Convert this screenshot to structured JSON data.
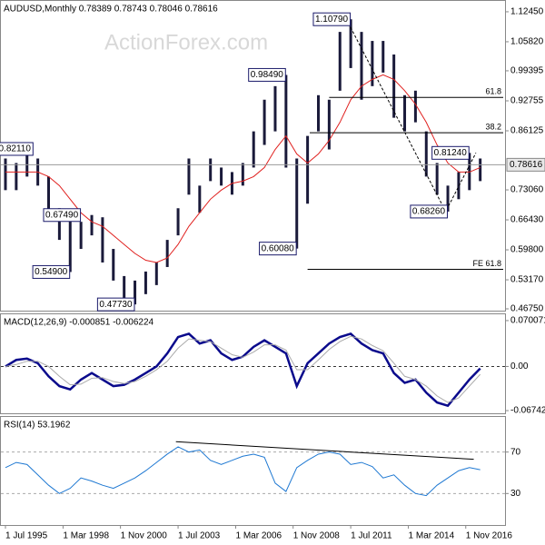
{
  "chart_data": [
    {
      "type": "range-bar",
      "title": "AUDUSD,Monthly  0.78389 0.78743 0.78046 0.78616",
      "watermark": "ActionForex.com",
      "color": "#1a1a3a",
      "ma_color": "#e0201e",
      "x": [
        1995.5,
        1996,
        1996.5,
        1997,
        1997.5,
        1998,
        1998.5,
        1999,
        1999.5,
        2000,
        2000.5,
        2001,
        2001.5,
        2002,
        2002.5,
        2003,
        2003.5,
        2004,
        2004.5,
        2005,
        2005.5,
        2006,
        2006.5,
        2007,
        2007.5,
        2008,
        2008.5,
        2009,
        2009.5,
        2010,
        2010.5,
        2011,
        2011.5,
        2012,
        2012.5,
        2013,
        2013.5,
        2014,
        2014.5,
        2015,
        2015.5,
        2016,
        2016.5,
        2017,
        2017.5
      ],
      "low": [
        0.73,
        0.73,
        0.76,
        0.74,
        0.68,
        0.62,
        0.549,
        0.6,
        0.63,
        0.57,
        0.53,
        0.49,
        0.4773,
        0.5,
        0.52,
        0.56,
        0.63,
        0.72,
        0.68,
        0.75,
        0.74,
        0.72,
        0.74,
        0.78,
        0.83,
        0.86,
        0.78,
        0.6008,
        0.7,
        0.86,
        0.82,
        0.95,
        1.0,
        0.93,
        0.96,
        0.99,
        0.89,
        0.86,
        0.88,
        0.76,
        0.72,
        0.6826,
        0.71,
        0.73,
        0.75
      ],
      "high": [
        0.8,
        0.79,
        0.81,
        0.8,
        0.76,
        0.69,
        0.67,
        0.66,
        0.675,
        0.67,
        0.6,
        0.54,
        0.53,
        0.55,
        0.57,
        0.62,
        0.69,
        0.8,
        0.74,
        0.8,
        0.78,
        0.77,
        0.79,
        0.86,
        0.93,
        0.96,
        0.9849,
        0.8,
        0.85,
        0.94,
        0.93,
        1.08,
        1.1079,
        1.08,
        1.06,
        1.06,
        1.03,
        0.94,
        0.95,
        0.86,
        0.79,
        0.74,
        0.77,
        0.8124,
        0.8
      ],
      "ma": [
        0.77,
        0.77,
        0.77,
        0.77,
        0.76,
        0.74,
        0.71,
        0.68,
        0.66,
        0.65,
        0.63,
        0.61,
        0.59,
        0.575,
        0.57,
        0.58,
        0.61,
        0.65,
        0.68,
        0.71,
        0.73,
        0.745,
        0.75,
        0.76,
        0.78,
        0.82,
        0.85,
        0.81,
        0.79,
        0.81,
        0.84,
        0.88,
        0.93,
        0.96,
        0.975,
        0.985,
        0.975,
        0.95,
        0.92,
        0.88,
        0.83,
        0.79,
        0.77,
        0.77,
        0.78
      ],
      "xlim": [
        1995.29,
        2018.65
      ],
      "ylim": [
        0.4635,
        1.1485
      ],
      "yticks": [
        {
          "value": 1.1245,
          "label": "1.12450"
        },
        {
          "value": 1.0582,
          "label": "1.05820"
        },
        {
          "value": 0.99395,
          "label": "0.99395"
        },
        {
          "value": 0.92755,
          "label": "0.92755"
        },
        {
          "value": 0.86125,
          "label": "0.86125"
        },
        {
          "value": 0.7306,
          "label": "0.73060"
        },
        {
          "value": 0.6643,
          "label": "0.66430"
        },
        {
          "value": 0.598,
          "label": "0.59800"
        },
        {
          "value": 0.5317,
          "label": "0.53170"
        },
        {
          "value": 0.4675,
          "label": "0.46750"
        }
      ],
      "last": {
        "value": 0.78616,
        "label": "0.78616"
      },
      "annotations": [
        {
          "x": 2011.5,
          "value": 1.1079,
          "label": "1.10790"
        },
        {
          "x": 2008.5,
          "value": 0.9849,
          "label": "0.98490"
        },
        {
          "x": 2009.0,
          "value": 0.6008,
          "label": "0.60080"
        },
        {
          "x": 1998.5,
          "value": 0.549,
          "label": "0.54900"
        },
        {
          "x": 2001.5,
          "value": 0.4773,
          "label": "0.47730"
        },
        {
          "x": 2016.0,
          "value": 0.6826,
          "label": "0.68260"
        },
        {
          "x": 2017.0,
          "value": 0.8124,
          "label": "0.81240"
        },
        {
          "x": 1999.0,
          "value": 0.6749,
          "label": "0.67490"
        },
        {
          "x": 1996.8,
          "value": 0.8211,
          "label": "0.82110"
        }
      ],
      "levels": [
        {
          "x": 2010.5,
          "value": 0.935,
          "label": "61.8"
        },
        {
          "x": 2009.6,
          "value": 0.857,
          "label": "38.2"
        },
        {
          "x": 2009.5,
          "value": 0.555,
          "label": "FE 61.8"
        }
      ],
      "trendline": {
        "x": [
          2011.3,
          2015.9,
          2017.3
        ],
        "values": [
          1.1079,
          0.6826,
          0.8124
        ]
      }
    },
    {
      "type": "line",
      "title": "MACD(12,26,9) -0.000851 -0.006224",
      "x": [
        1995.5,
        1996,
        1996.5,
        1997,
        1997.5,
        1998,
        1998.5,
        1999,
        1999.5,
        2000,
        2000.5,
        2001,
        2001.5,
        2002,
        2002.5,
        2003,
        2003.5,
        2004,
        2004.5,
        2005,
        2005.5,
        2006,
        2006.5,
        2007,
        2007.5,
        2008,
        2008.5,
        2009,
        2009.5,
        2010,
        2010.5,
        2011,
        2011.5,
        2012,
        2012.5,
        2013,
        2013.5,
        2014,
        2014.5,
        2015,
        2015.5,
        2016,
        2016.5,
        2017,
        2017.5
      ],
      "series": [
        {
          "color": "#0a0a8c",
          "width": 2.5,
          "values": [
            0,
            0.01,
            0.012,
            0.005,
            -0.015,
            -0.03,
            -0.035,
            -0.02,
            -0.01,
            -0.02,
            -0.03,
            -0.028,
            -0.02,
            -0.01,
            0,
            0.02,
            0.045,
            0.05,
            0.035,
            0.04,
            0.02,
            0.01,
            0.015,
            0.03,
            0.04,
            0.03,
            0.02,
            -0.03,
            0.005,
            0.02,
            0.035,
            0.045,
            0.05,
            0.035,
            0.025,
            0.02,
            -0.01,
            -0.025,
            -0.02,
            -0.04,
            -0.055,
            -0.06,
            -0.04,
            -0.02,
            -0.003
          ]
        },
        {
          "color": "#aaaaaa",
          "width": 1,
          "values": [
            0,
            0.003,
            0.008,
            0.008,
            0,
            -0.015,
            -0.028,
            -0.027,
            -0.018,
            -0.017,
            -0.023,
            -0.026,
            -0.023,
            -0.015,
            -0.005,
            0.008,
            0.028,
            0.042,
            0.04,
            0.038,
            0.028,
            0.018,
            0.014,
            0.022,
            0.033,
            0.033,
            0.025,
            -0.005,
            -0.005,
            0.01,
            0.026,
            0.038,
            0.046,
            0.042,
            0.032,
            0.024,
            0.005,
            -0.015,
            -0.02,
            -0.03,
            -0.045,
            -0.055,
            -0.048,
            -0.03,
            -0.012
          ]
        }
      ],
      "xlim": [
        1995.29,
        2018.65
      ],
      "ylim": [
        -0.0715,
        0.0797
      ],
      "yticks": [
        {
          "value": 0.070071,
          "label": "0.070071"
        },
        {
          "value": 0,
          "label": "0.00"
        },
        {
          "value": -0.067423,
          "label": "-0.067423"
        }
      ],
      "dashed": [
        0
      ]
    },
    {
      "type": "line",
      "title": "RSI(14) 53.1962",
      "x": [
        1995.5,
        1996,
        1996.5,
        1997,
        1997.5,
        1998,
        1998.5,
        1999,
        1999.5,
        2000,
        2000.5,
        2001,
        2001.5,
        2002,
        2002.5,
        2003,
        2003.5,
        2004,
        2004.5,
        2005,
        2005.5,
        2006,
        2006.5,
        2007,
        2007.5,
        2008,
        2008.5,
        2009,
        2009.5,
        2010,
        2010.5,
        2011,
        2011.5,
        2012,
        2012.5,
        2013,
        2013.5,
        2014,
        2014.5,
        2015,
        2015.5,
        2016,
        2016.5,
        2017,
        2017.5
      ],
      "series": [
        {
          "color": "#1e78d2",
          "width": 1,
          "values": [
            55,
            60,
            58,
            48,
            38,
            30,
            35,
            45,
            42,
            38,
            35,
            40,
            45,
            52,
            60,
            68,
            75,
            70,
            72,
            62,
            58,
            62,
            66,
            68,
            65,
            40,
            32,
            55,
            62,
            68,
            70,
            68,
            58,
            60,
            56,
            45,
            48,
            38,
            30,
            28,
            38,
            45,
            52,
            55,
            53
          ]
        }
      ],
      "xlim": [
        1995.29,
        2018.65
      ],
      "ylim": [
        -0.4,
        103.9
      ],
      "yticks": [
        70,
        30
      ],
      "dashed": [
        70,
        30
      ],
      "trendline": {
        "x": [
          2003.4,
          2017.2
        ],
        "values": [
          80,
          63
        ]
      },
      "xticks": [
        {
          "value": 1995.5,
          "label": "1 Jul 1995"
        },
        {
          "value": 1998.17,
          "label": "1 Mar 1998"
        },
        {
          "value": 2000.83,
          "label": "1 Nov 2000"
        },
        {
          "value": 2003.5,
          "label": "1 Jul 2003"
        },
        {
          "value": 2006.17,
          "label": "1 Mar 2006"
        },
        {
          "value": 2008.83,
          "label": "1 Nov 2008"
        },
        {
          "value": 2011.5,
          "label": "1 Jul 2011"
        },
        {
          "value": 2014.17,
          "label": "1 Mar 2014"
        },
        {
          "value": 2016.83,
          "label": "1 Nov 2016"
        }
      ]
    }
  ]
}
